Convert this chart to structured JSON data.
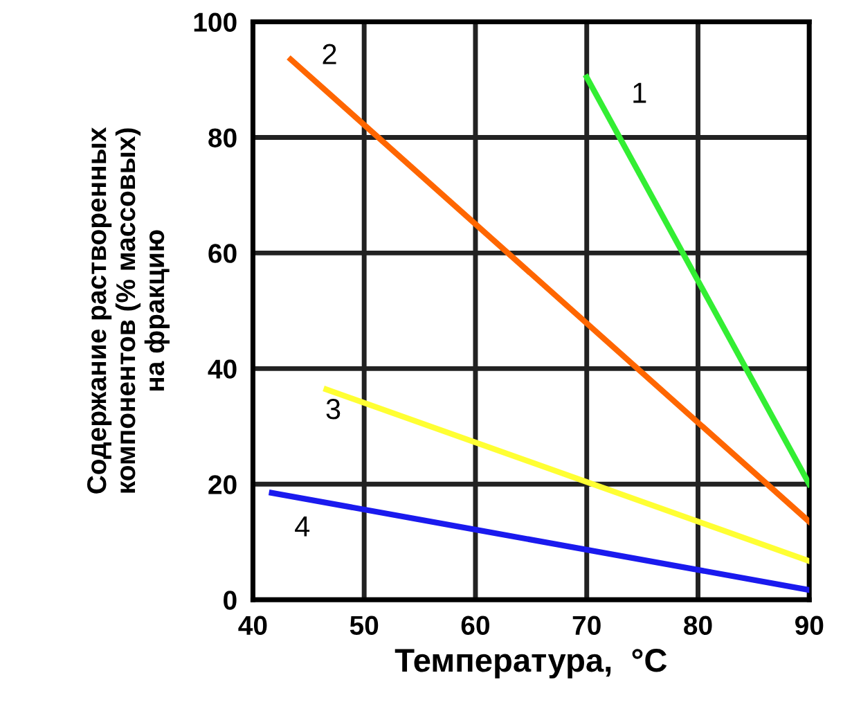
{
  "chart_data": {
    "type": "line",
    "xlabel": "Температура,  °C",
    "ylabel": "Содержание растворенных\nкомпонентов (% массовых)\nна фракцию",
    "xlim": [
      40,
      90
    ],
    "ylim": [
      0,
      100
    ],
    "xticks": [
      40,
      50,
      60,
      70,
      80,
      90
    ],
    "yticks": [
      0,
      20,
      40,
      60,
      80,
      100
    ],
    "grid": true,
    "marker": "none",
    "line_style": "solid",
    "series": [
      {
        "name": "1",
        "color": "#33ee33",
        "x": [
          70,
          90
        ],
        "values": [
          90.4,
          20
        ]
      },
      {
        "name": "2",
        "color": "#ff6600",
        "x": [
          43.4,
          90
        ],
        "values": [
          93.5,
          13.5
        ]
      },
      {
        "name": "3",
        "color": "#ffff33",
        "x": [
          46.6,
          90
        ],
        "values": [
          36.4,
          6.7
        ]
      },
      {
        "name": "4",
        "color": "#1a1aee",
        "x": [
          41.7,
          90
        ],
        "values": [
          18.5,
          1.7
        ]
      }
    ]
  }
}
